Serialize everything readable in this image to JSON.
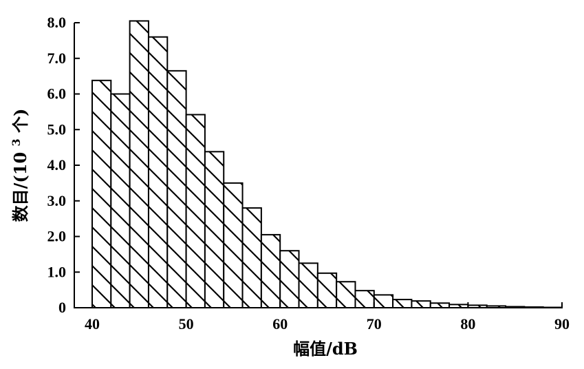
{
  "chart_data": {
    "type": "bar",
    "title": "",
    "xlabel": "幅值/dB",
    "ylabel": {
      "prefix": "数目/(10",
      "superscript": "3",
      "suffix": "个)"
    },
    "xlim": [
      40,
      90
    ],
    "ylim": [
      0,
      8
    ],
    "grid": false,
    "legend": "none",
    "bar_pattern": "diagonal-hatch",
    "x_ticks": [
      40,
      50,
      60,
      70,
      80,
      90
    ],
    "x_tick_labels": [
      "40",
      "50",
      "60",
      "70",
      "80",
      "90"
    ],
    "y_ticks": [
      0,
      1,
      2,
      3,
      4,
      5,
      6,
      7,
      8
    ],
    "y_tick_labels": [
      "0",
      "1.0",
      "2.0",
      "3.0",
      "4.0",
      "5.0",
      "6.0",
      "7.0",
      "8.0"
    ],
    "bins": [
      {
        "x_start": 40,
        "x_end": 42,
        "value": 6.38
      },
      {
        "x_start": 42,
        "x_end": 44,
        "value": 6.0
      },
      {
        "x_start": 44,
        "x_end": 46,
        "value": 8.05
      },
      {
        "x_start": 46,
        "x_end": 48,
        "value": 7.6
      },
      {
        "x_start": 48,
        "x_end": 50,
        "value": 6.65
      },
      {
        "x_start": 50,
        "x_end": 52,
        "value": 5.42
      },
      {
        "x_start": 52,
        "x_end": 54,
        "value": 4.38
      },
      {
        "x_start": 54,
        "x_end": 56,
        "value": 3.5
      },
      {
        "x_start": 56,
        "x_end": 58,
        "value": 2.8
      },
      {
        "x_start": 58,
        "x_end": 60,
        "value": 2.05
      },
      {
        "x_start": 60,
        "x_end": 62,
        "value": 1.6
      },
      {
        "x_start": 62,
        "x_end": 64,
        "value": 1.25
      },
      {
        "x_start": 64,
        "x_end": 66,
        "value": 0.97
      },
      {
        "x_start": 66,
        "x_end": 68,
        "value": 0.73
      },
      {
        "x_start": 68,
        "x_end": 70,
        "value": 0.48
      },
      {
        "x_start": 70,
        "x_end": 72,
        "value": 0.36
      },
      {
        "x_start": 72,
        "x_end": 74,
        "value": 0.23
      },
      {
        "x_start": 74,
        "x_end": 76,
        "value": 0.19
      },
      {
        "x_start": 76,
        "x_end": 78,
        "value": 0.13
      },
      {
        "x_start": 78,
        "x_end": 80,
        "value": 0.09
      },
      {
        "x_start": 80,
        "x_end": 82,
        "value": 0.07
      },
      {
        "x_start": 82,
        "x_end": 84,
        "value": 0.05
      },
      {
        "x_start": 84,
        "x_end": 86,
        "value": 0.03
      },
      {
        "x_start": 86,
        "x_end": 88,
        "value": 0.02
      },
      {
        "x_start": 88,
        "x_end": 90,
        "value": 0.01
      }
    ]
  }
}
